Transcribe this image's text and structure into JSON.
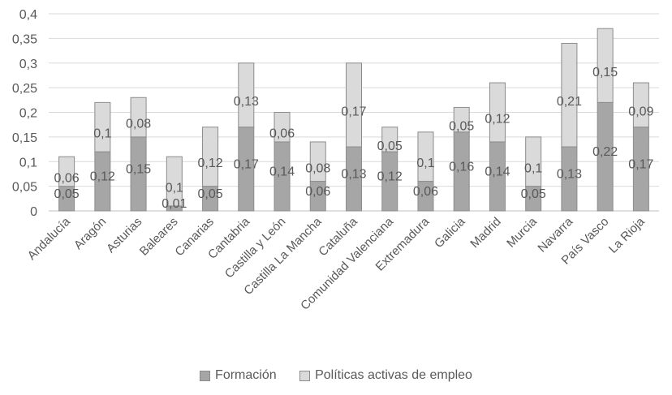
{
  "chart_data": {
    "type": "bar",
    "stacked": true,
    "categories": [
      "Andalucía",
      "Aragón",
      "Asturias",
      "Baleares",
      "Canarias",
      "Cantabria",
      "Castilla y León",
      "Castilla La Mancha",
      "Cataluña",
      "Comunidad Valenciana",
      "Extremadura",
      "Galicia",
      "Madrid",
      "Murcia",
      "Navarra",
      "País Vasco",
      "La Rioja"
    ],
    "series": [
      {
        "name": "Formación",
        "values": [
          0.05,
          0.12,
          0.15,
          0.01,
          0.05,
          0.17,
          0.14,
          0.06,
          0.13,
          0.12,
          0.06,
          0.16,
          0.14,
          0.05,
          0.13,
          0.22,
          0.17
        ],
        "color": "#a6a6a6"
      },
      {
        "name": "Políticas activas de empleo",
        "values": [
          0.06,
          0.1,
          0.08,
          0.1,
          0.12,
          0.13,
          0.06,
          0.08,
          0.17,
          0.05,
          0.1,
          0.05,
          0.12,
          0.1,
          0.21,
          0.15,
          0.09
        ],
        "color": "#dadada"
      }
    ],
    "ylim": [
      0,
      0.4
    ],
    "yticks": [
      "0",
      "0,05",
      "0,1",
      "0,15",
      "0,2",
      "0,25",
      "0,3",
      "0,35",
      "0,4"
    ],
    "grid": true,
    "legend_position": "bottom",
    "title": "",
    "xlabel": "",
    "ylabel": ""
  }
}
